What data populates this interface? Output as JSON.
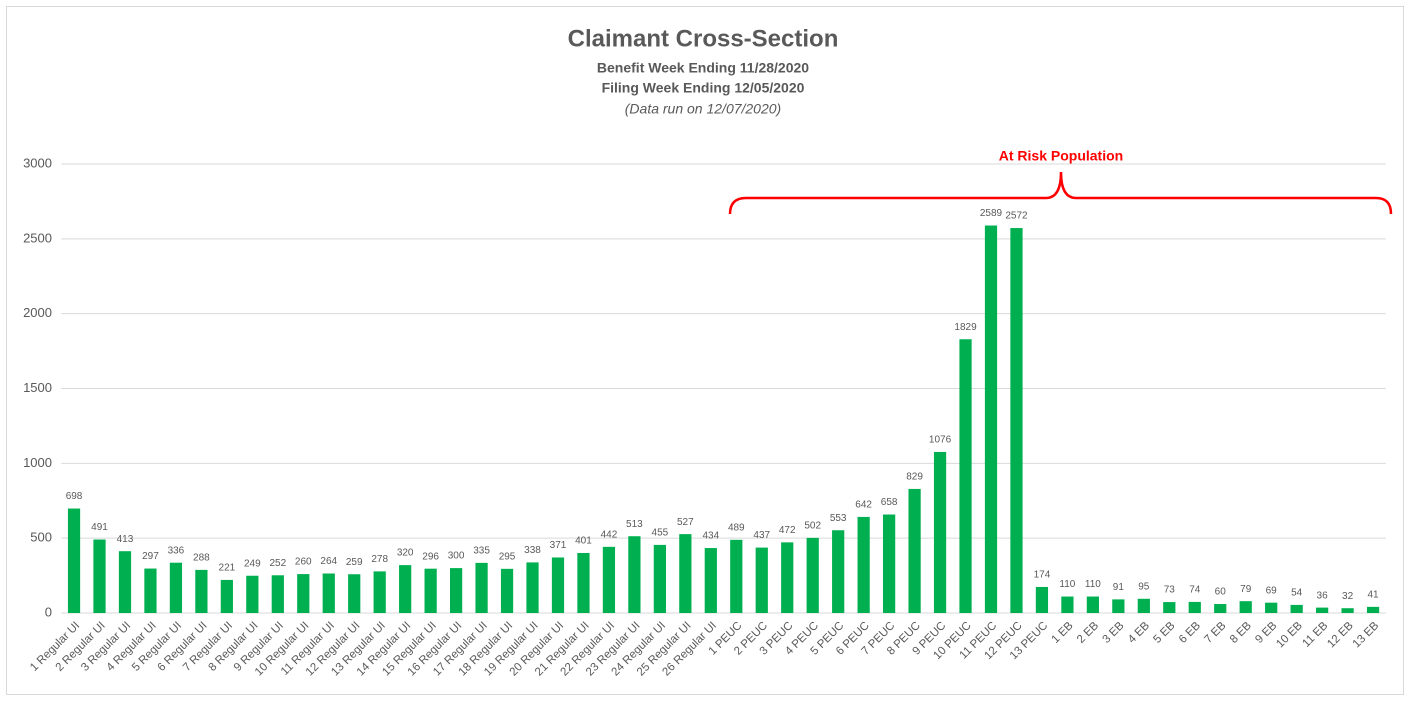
{
  "chart_data": {
    "type": "bar",
    "title": "Claimant Cross-Section",
    "subtitle": [
      "Benefit Week Ending 11/28/2020",
      "Filing Week Ending 12/05/2020",
      "(Data run on 12/07/2020)"
    ],
    "annotation": "At Risk Population",
    "categories": [
      "1 Regular UI",
      "2 Regular UI",
      "3 Regular UI",
      "4 Regular UI",
      "5 Regular UI",
      "6 Regular UI",
      "7 Regular UI",
      "8 Regular UI",
      "9 Regular UI",
      "10 Regular UI",
      "11 Regular UI",
      "12 Regular UI",
      "13 Regular UI",
      "14 Regular UI",
      "15 Regular UI",
      "16 Regular UI",
      "17 Regular UI",
      "18 Regular UI",
      "19 Regular UI",
      "20 Regular UI",
      "21 Regular UI",
      "22 Regular UI",
      "23 Regular UI",
      "24 Regular UI",
      "25 Regular UI",
      "26 Regular UI",
      "1 PEUC",
      "2 PEUC",
      "3 PEUC",
      "4 PEUC",
      "5 PEUC",
      "6 PEUC",
      "7 PEUC",
      "8 PEUC",
      "9 PEUC",
      "10 PEUC",
      "11 PEUC",
      "12 PEUC",
      "13 PEUC",
      "1 EB",
      "2 EB",
      "3 EB",
      "4 EB",
      "5 EB",
      "6 EB",
      "7 EB",
      "8 EB",
      "9 EB",
      "10 EB",
      "11 EB",
      "12 EB",
      "13 EB"
    ],
    "values": [
      698,
      491,
      413,
      297,
      336,
      288,
      221,
      249,
      252,
      260,
      264,
      259,
      278,
      320,
      296,
      300,
      335,
      295,
      338,
      371,
      401,
      442,
      513,
      455,
      527,
      434,
      489,
      437,
      472,
      502,
      553,
      642,
      658,
      829,
      1076,
      1829,
      2589,
      2572,
      174,
      110,
      110,
      91,
      95,
      73,
      74,
      60,
      79,
      69,
      54,
      36,
      32,
      41
    ],
    "color": "#00b050",
    "ylim": [
      0,
      3000
    ],
    "yticks": [
      0,
      500,
      1000,
      1500,
      2000,
      2500,
      3000
    ],
    "grid": true
  }
}
